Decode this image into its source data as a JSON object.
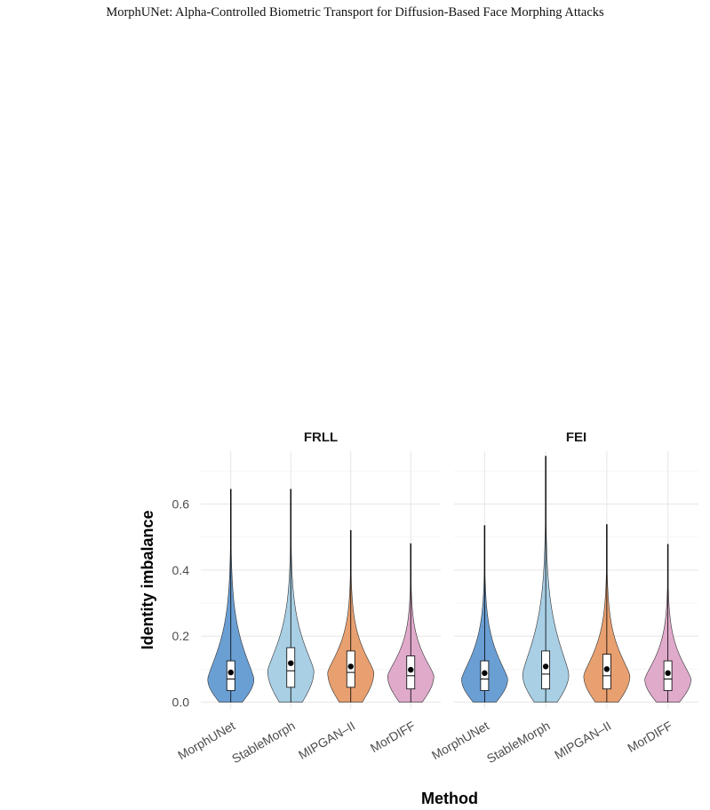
{
  "page": {
    "running_header": "MorphUNet: Alpha-Controlled Biometric Transport for Diffusion-Based Face Morphing Attacks"
  },
  "chart_data": {
    "type": "violin",
    "xlabel": "Method",
    "ylabel": "Identity imbalance",
    "ylim": [
      -0.02,
      0.76
    ],
    "yticks": [
      0.0,
      0.2,
      0.4,
      0.6
    ],
    "ytick_labels": [
      "0.0",
      "0.2",
      "0.4",
      "0.6"
    ],
    "grid": true,
    "categories": [
      "MorphUNet",
      "StableMorph",
      "MIPGAN–II",
      "MorDIFF"
    ],
    "colors": [
      "#6a9fd4",
      "#a9cfe5",
      "#e8a070",
      "#e0aacb"
    ],
    "panels": [
      {
        "title": "FRLL",
        "series": [
          {
            "name": "MorphUNet",
            "max": 0.645,
            "q1": 0.035,
            "median": 0.07,
            "q3": 0.125,
            "mean": 0.09
          },
          {
            "name": "StableMorph",
            "max": 0.645,
            "q1": 0.045,
            "median": 0.095,
            "q3": 0.165,
            "mean": 0.118
          },
          {
            "name": "MIPGAN–II",
            "max": 0.52,
            "q1": 0.045,
            "median": 0.09,
            "q3": 0.155,
            "mean": 0.108
          },
          {
            "name": "MorDIFF",
            "max": 0.48,
            "q1": 0.04,
            "median": 0.08,
            "q3": 0.14,
            "mean": 0.098
          }
        ]
      },
      {
        "title": "FEI",
        "series": [
          {
            "name": "MorphUNet",
            "max": 0.535,
            "q1": 0.035,
            "median": 0.07,
            "q3": 0.125,
            "mean": 0.088
          },
          {
            "name": "StableMorph",
            "max": 0.745,
            "q1": 0.04,
            "median": 0.085,
            "q3": 0.155,
            "mean": 0.108
          },
          {
            "name": "MIPGAN–II",
            "max": 0.538,
            "q1": 0.04,
            "median": 0.08,
            "q3": 0.145,
            "mean": 0.1
          },
          {
            "name": "MorDIFF",
            "max": 0.478,
            "q1": 0.035,
            "median": 0.07,
            "q3": 0.125,
            "mean": 0.088
          }
        ]
      }
    ]
  }
}
